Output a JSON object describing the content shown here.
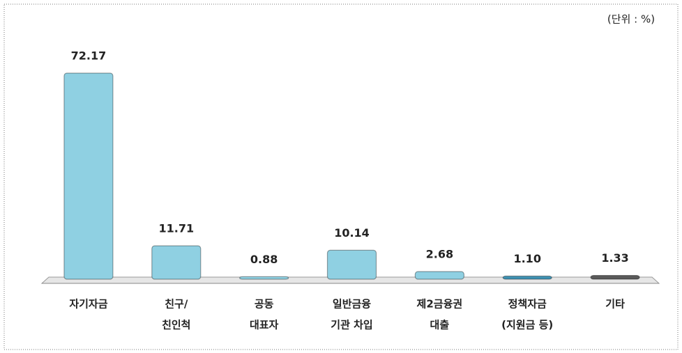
{
  "chart_data": {
    "type": "bar",
    "subtitle": "(단위 : %)",
    "categories": [
      [
        "자기자금"
      ],
      [
        "친구/",
        "친인척"
      ],
      [
        "공동",
        "대표자"
      ],
      [
        "일반금융",
        "기관 차입"
      ],
      [
        "제2금융권",
        "대출"
      ],
      [
        "정책자금",
        "(지원금 등)"
      ],
      [
        "기타"
      ]
    ],
    "values": [
      72.17,
      11.71,
      0.88,
      10.14,
      2.68,
      1.1,
      1.33
    ],
    "value_labels": [
      "72.17",
      "11.71",
      "0.88",
      "10.14",
      "2.68",
      "1.10",
      "1.33"
    ],
    "colors": [
      "#8fd0e2",
      "#8fd0e2",
      "#8fd0e2",
      "#8fd0e2",
      "#8fd0e2",
      "#3f92b3",
      "#5a5a5a"
    ]
  }
}
